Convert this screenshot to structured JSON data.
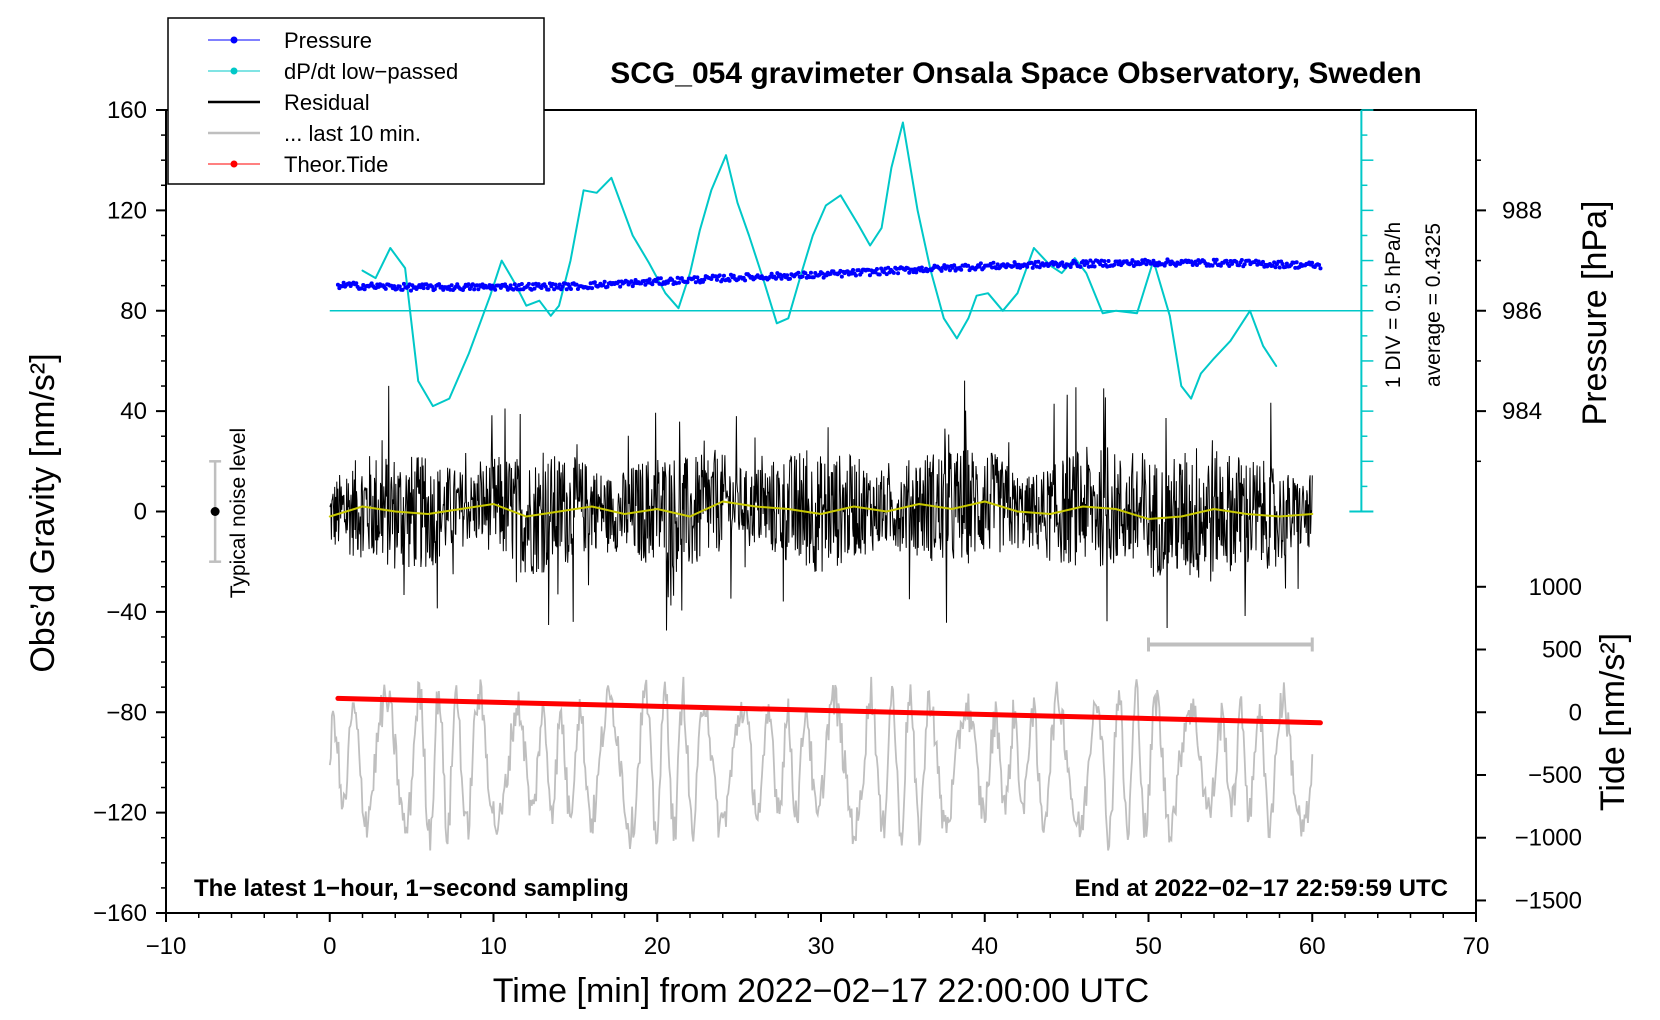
{
  "chart_data": {
    "type": "line",
    "title": "SCG_054 gravimeter Onsala Space Observatory, Sweden",
    "xlabel": "Time [min] from 2022−02−17 22:00:00 UTC",
    "ylabel_left": "Obs’d Gravity [nm/s²]",
    "ylabel_right_pressure": "Pressure [hPa]",
    "ylabel_right_tide": "Tide [nm/s²]",
    "xlim": [
      -10,
      70
    ],
    "ylim": [
      -160,
      160
    ],
    "x_ticks": [
      "−10",
      "0",
      "10",
      "20",
      "30",
      "40",
      "50",
      "60",
      "70"
    ],
    "x_tick_values": [
      -10,
      0,
      10,
      20,
      30,
      40,
      50,
      60,
      70
    ],
    "y_ticks": [
      "160",
      "120",
      "80",
      "40",
      "0",
      "−40",
      "−80",
      "−120",
      "−160"
    ],
    "y_tick_values": [
      160,
      120,
      80,
      40,
      0,
      -40,
      -80,
      -120,
      -160
    ],
    "pressure_ticks": [
      "988",
      "986",
      "984"
    ],
    "pressure_tick_values": [
      988,
      986,
      984
    ],
    "pressure_scale": {
      "hpa_at_gravity_80": 986,
      "gravity_per_hpa": 20
    },
    "tide_ticks": [
      "1000",
      "500",
      "0",
      "−500",
      "−1000",
      "−1500"
    ],
    "tide_tick_values": [
      1000,
      500,
      0,
      -500,
      -1000,
      -1500
    ],
    "tide_scale": {
      "gravity_at_tide_0": -80,
      "gravity_per_unit": 0.05
    },
    "legend": [
      {
        "label": "Pressure",
        "color": "#0000ff",
        "style": "line-dot"
      },
      {
        "label": "dP/dt low−passed",
        "color": "#00c8c8",
        "style": "line-dot"
      },
      {
        "label": "Residual",
        "color": "#000000",
        "style": "line"
      },
      {
        "label": "... last 10 min.",
        "color": "#bfbfbf",
        "style": "line"
      },
      {
        "label": "Theor.Tide",
        "color": "#ff0000",
        "style": "line-dot"
      }
    ],
    "series": [
      {
        "name": "dP/dt low−passed",
        "color": "#00c8c8",
        "x": [
          2,
          2.8,
          3.7,
          4.6,
          5.4,
          6.3,
          7.3,
          8.5,
          9.8,
          10.5,
          11.3,
          12,
          12.8,
          13.5,
          14,
          14.7,
          15.5,
          16.3,
          17.2,
          18.5,
          19.5,
          20.5,
          21.3,
          22,
          22.6,
          23.3,
          24.2,
          24.9,
          25.6,
          26.5,
          27.3,
          28,
          28.8,
          29.5,
          30.3,
          31.2,
          32.3,
          33,
          33.7,
          34.3,
          35,
          35.9,
          36.7,
          37.5,
          38.3,
          39,
          39.5,
          40.2,
          41.1,
          42,
          43,
          44,
          44.7,
          45.5,
          46.2,
          47.2,
          48,
          49.3,
          50.3,
          51.3,
          52,
          52.6,
          53.2,
          54,
          55,
          56.2,
          57,
          57.8
        ],
        "values": [
          96,
          93,
          105,
          97,
          52,
          42,
          45,
          63,
          86,
          100,
          91,
          82,
          84,
          78,
          82,
          100,
          128,
          127,
          133,
          110,
          99,
          87,
          81,
          95,
          112,
          128,
          142,
          123,
          110,
          92,
          75,
          77,
          95,
          110,
          122,
          126,
          114,
          106,
          113,
          137,
          155,
          120,
          96,
          77,
          69,
          77,
          86,
          87,
          80,
          87,
          105,
          98,
          95,
          101,
          95,
          79,
          80,
          79,
          100,
          78,
          50,
          45,
          55,
          61,
          68,
          80,
          66,
          58
        ]
      },
      {
        "name": "Pressure",
        "color": "#0000ff",
        "x": [
          0.5,
          5,
          10,
          15,
          20,
          25,
          30,
          35,
          40,
          45,
          50,
          55,
          60.5
        ],
        "values": [
          90.2,
          89.3,
          89.5,
          89.8,
          91.6,
          93.3,
          94.3,
          96.2,
          97.8,
          98.6,
          99.2,
          99.1,
          98.0
        ]
      },
      {
        "name": "Theor.Tide",
        "color": "#ff0000",
        "x": [
          0.5,
          60.5
        ],
        "values": [
          -74.5,
          -84.2
        ]
      },
      {
        "name": "Residual (low-passed)",
        "color": "#c8c800",
        "x": [
          0,
          2,
          4,
          6,
          8,
          10,
          12,
          14,
          16,
          18,
          20,
          22,
          24,
          26,
          28,
          30,
          32,
          34,
          36,
          38,
          40,
          42,
          44,
          46,
          48,
          50,
          52,
          54,
          56,
          58,
          60
        ],
        "values": [
          -2,
          2,
          0,
          -1,
          1,
          3,
          -2,
          0,
          2,
          -1,
          1,
          -2,
          4,
          2,
          1,
          -1,
          2,
          0,
          3,
          1,
          4,
          0,
          -1,
          2,
          1,
          -3,
          -2,
          1,
          -1,
          -2,
          -1
        ]
      }
    ],
    "noise_bar": {
      "label": "Typical noise level",
      "x": -7,
      "center": 0,
      "low": -20,
      "high": 20
    },
    "last10_bar": {
      "x_start": 50,
      "x_end": 60,
      "y": -53
    },
    "pressure_scale_label": "1 DIV = 0.5 hPa/h",
    "pressure_average_label": "average = 0.4325",
    "footer_left": "The latest 1−hour, 1−second sampling",
    "footer_right": "End at 2022−02−17 22:59:59 UTC"
  }
}
